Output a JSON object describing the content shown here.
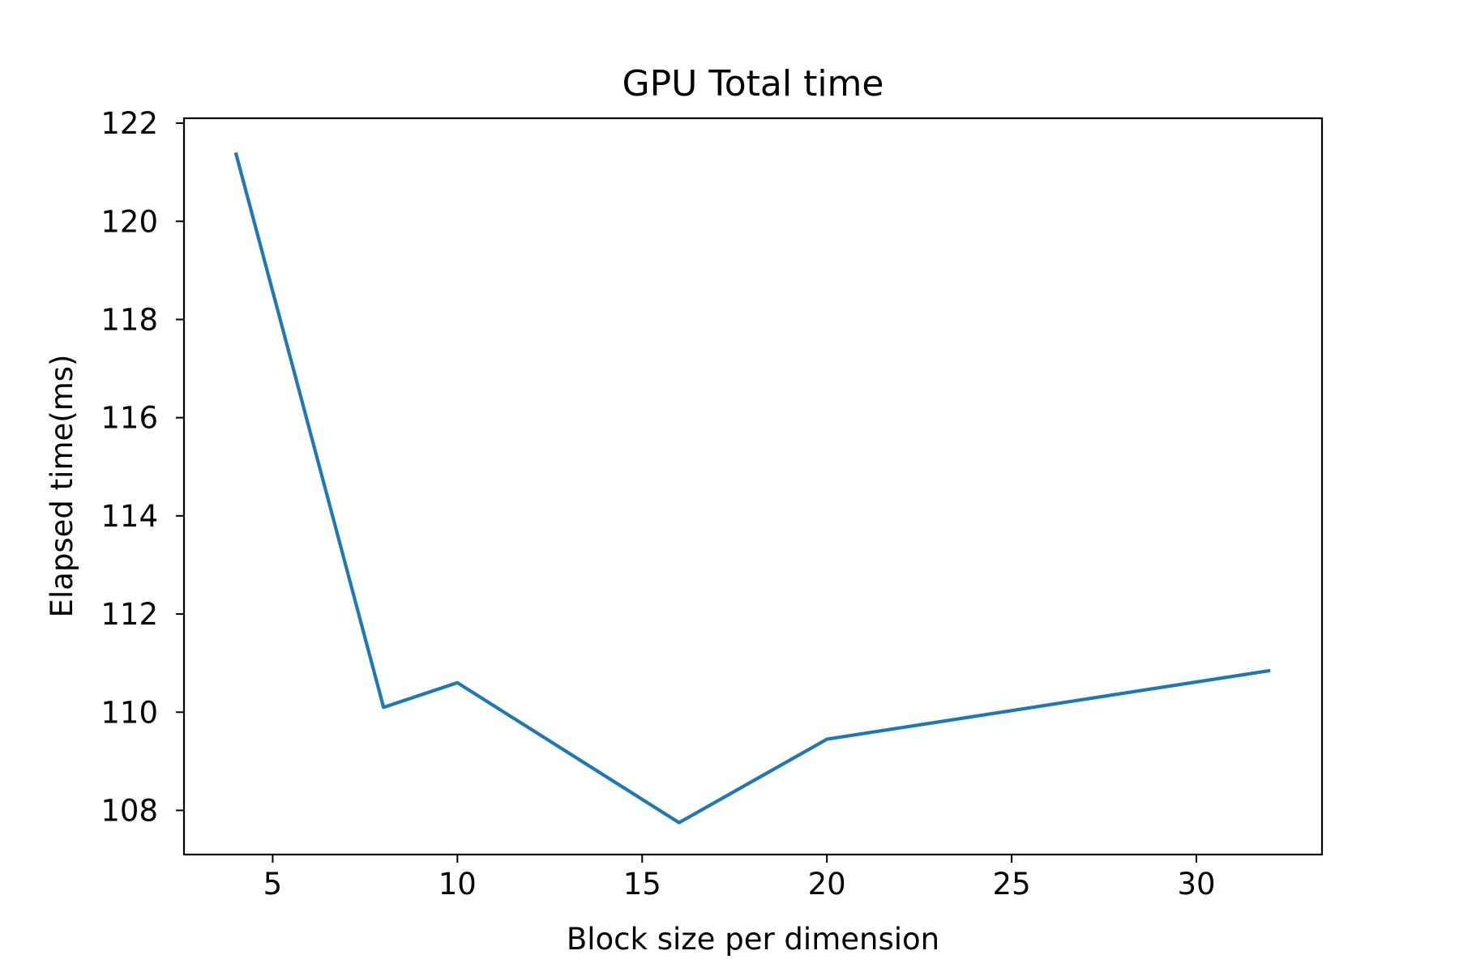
{
  "chart_data": {
    "type": "line",
    "title": "GPU Total time",
    "xlabel": "Block size per dimension",
    "ylabel": "Elapsed time(ms)",
    "xlim": [
      2.6,
      33.4
    ],
    "ylim": [
      107.1,
      122.1
    ],
    "xticks": [
      5,
      10,
      15,
      20,
      25,
      30
    ],
    "yticks": [
      108,
      110,
      112,
      114,
      116,
      118,
      120,
      122
    ],
    "grid": false,
    "series": [
      {
        "color": "#1f77b4",
        "x": [
          4,
          8,
          10,
          16,
          20,
          32
        ],
        "y": [
          121.4,
          110.1,
          110.6,
          107.75,
          109.45,
          110.85
        ]
      }
    ]
  }
}
